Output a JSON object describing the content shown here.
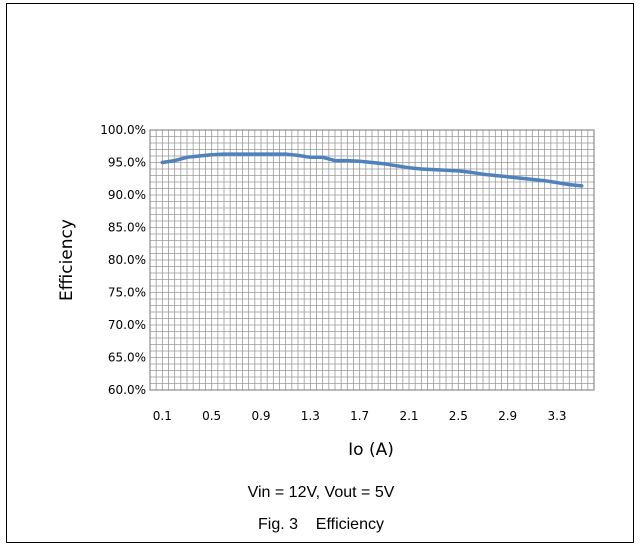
{
  "chart_data": {
    "type": "line",
    "title": "",
    "xlabel": "Io (A)",
    "ylabel": "Efficiency",
    "x_tick_labels": [
      "0.1",
      "0.5",
      "0.9",
      "1.3",
      "1.7",
      "2.1",
      "2.5",
      "2.9",
      "3.3"
    ],
    "x_ticks": [
      0.1,
      0.5,
      0.9,
      1.3,
      1.7,
      2.1,
      2.5,
      2.9,
      3.3
    ],
    "xlim": [
      0.0,
      3.6
    ],
    "y_tick_labels": [
      "60.0%",
      "65.0%",
      "70.0%",
      "75.0%",
      "80.0%",
      "85.0%",
      "90.0%",
      "95.0%",
      "100.0%"
    ],
    "ylim": [
      60.0,
      100.0
    ],
    "grid": true,
    "legend": "none",
    "series": [
      {
        "color": "#4f81bd",
        "x": [
          0.1,
          0.2,
          0.3,
          0.4,
          0.5,
          0.6,
          0.7,
          0.8,
          0.9,
          1.0,
          1.1,
          1.2,
          1.3,
          1.4,
          1.5,
          1.6,
          1.7,
          1.8,
          1.9,
          2.0,
          2.1,
          2.2,
          2.3,
          2.4,
          2.5,
          2.6,
          2.7,
          2.8,
          2.9,
          3.0,
          3.1,
          3.2,
          3.3,
          3.4,
          3.5
        ],
        "y": [
          95.0,
          95.3,
          95.8,
          96.0,
          96.2,
          96.3,
          96.3,
          96.3,
          96.3,
          96.3,
          96.3,
          96.1,
          95.8,
          95.8,
          95.3,
          95.3,
          95.2,
          95.0,
          94.8,
          94.5,
          94.2,
          94.0,
          93.9,
          93.8,
          93.7,
          93.5,
          93.2,
          93.0,
          92.8,
          92.6,
          92.4,
          92.2,
          91.9,
          91.6,
          91.4
        ]
      }
    ]
  },
  "caption": {
    "conditions": "Vin = 12V, Vout = 5V",
    "figure": "Fig. 3    Efficiency"
  }
}
